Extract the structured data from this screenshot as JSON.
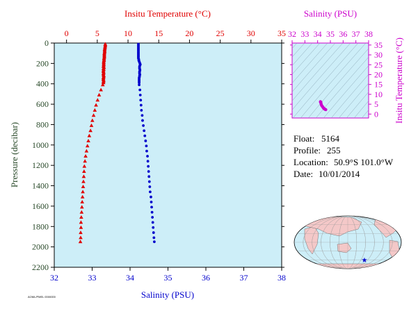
{
  "colors": {
    "temperature": "#e00000",
    "salinity": "#0000cc",
    "ts_magenta": "#cc00cc",
    "pressure_axis": "#2a4a2a",
    "panel_bg": "#cdeef8",
    "land": "#f4c8c8",
    "ocean": "#cdeef8"
  },
  "info": {
    "float_label": "Float:",
    "float_value": "5164",
    "profile_label": "Profile:",
    "profile_value": "255",
    "location_label": "Location:",
    "location_value": "50.9°S  101.0°W",
    "date_label": "Date:",
    "date_value": "10/01/2014"
  },
  "footer_code": "AOML/PMEL 0000000",
  "chart_data": [
    {
      "type": "scatter",
      "name": "profile",
      "top_axis_title": "Insitu Temperature (°C)",
      "bottom_axis_title": "Salinity (PSU)",
      "left_axis_title": "Pressure (decibar)",
      "temperature_ticks": [
        0,
        5,
        10,
        15,
        20,
        25,
        30,
        35
      ],
      "temperature_range": [
        -2,
        35
      ],
      "salinity_ticks": [
        32,
        33,
        34,
        35,
        36,
        37,
        38
      ],
      "salinity_range": [
        32,
        38
      ],
      "pressure_ticks": [
        0,
        200,
        400,
        600,
        800,
        1000,
        1200,
        1400,
        1600,
        1800,
        2000,
        2200
      ],
      "pressure_range": [
        0,
        2200
      ],
      "pressure_reversed": true,
      "series": [
        {
          "name": "Temperature",
          "marker": "triangle",
          "axis": "temperature",
          "pressure": [
            10,
            20,
            30,
            40,
            50,
            60,
            70,
            80,
            90,
            100,
            110,
            120,
            130,
            140,
            150,
            160,
            170,
            180,
            190,
            200,
            210,
            220,
            230,
            240,
            250,
            260,
            270,
            280,
            290,
            300,
            310,
            320,
            330,
            340,
            350,
            360,
            370,
            380,
            390,
            410,
            460,
            510,
            560,
            610,
            660,
            710,
            760,
            810,
            860,
            910,
            960,
            1010,
            1060,
            1110,
            1160,
            1210,
            1260,
            1310,
            1360,
            1410,
            1460,
            1510,
            1560,
            1610,
            1660,
            1710,
            1760,
            1810,
            1860,
            1910,
            1950
          ],
          "values": [
            6.3,
            6.3,
            6.3,
            6.25,
            6.25,
            6.2,
            6.2,
            6.2,
            6.2,
            6.15,
            6.15,
            6.15,
            6.15,
            6.15,
            6.1,
            6.1,
            6.1,
            6.05,
            6.05,
            6.05,
            6.05,
            6.05,
            6.0,
            6.1,
            6.0,
            6.05,
            6.0,
            6.0,
            6.05,
            6.0,
            6.0,
            6.05,
            6.05,
            6.0,
            6.0,
            6.0,
            6.05,
            6.0,
            6.0,
            5.9,
            5.6,
            5.3,
            5.05,
            4.8,
            4.6,
            4.4,
            4.2,
            4.05,
            3.9,
            3.7,
            3.55,
            3.4,
            3.25,
            3.1,
            3.0,
            2.9,
            2.85,
            2.8,
            2.75,
            2.7,
            2.65,
            2.6,
            2.55,
            2.5,
            2.45,
            2.4,
            2.35,
            2.35,
            2.3,
            2.3,
            2.25
          ]
        },
        {
          "name": "Salinity",
          "marker": "circle",
          "axis": "salinity",
          "pressure": [
            10,
            20,
            30,
            40,
            50,
            60,
            70,
            80,
            90,
            100,
            110,
            120,
            130,
            140,
            150,
            160,
            170,
            180,
            190,
            200,
            210,
            220,
            230,
            240,
            250,
            260,
            270,
            280,
            290,
            300,
            310,
            320,
            330,
            340,
            350,
            360,
            370,
            380,
            390,
            410,
            460,
            510,
            560,
            610,
            660,
            710,
            760,
            810,
            860,
            910,
            960,
            1010,
            1060,
            1110,
            1160,
            1210,
            1260,
            1310,
            1360,
            1410,
            1460,
            1510,
            1560,
            1610,
            1660,
            1710,
            1760,
            1810,
            1860,
            1910,
            1950
          ],
          "values": [
            34.22,
            34.22,
            34.22,
            34.22,
            34.22,
            34.22,
            34.22,
            34.22,
            34.22,
            34.22,
            34.22,
            34.22,
            34.22,
            34.22,
            34.22,
            34.23,
            34.23,
            34.24,
            34.25,
            34.26,
            34.27,
            34.26,
            34.25,
            34.25,
            34.25,
            34.26,
            34.26,
            34.25,
            34.25,
            34.25,
            34.26,
            34.25,
            34.25,
            34.24,
            34.24,
            34.24,
            34.24,
            34.24,
            34.24,
            34.24,
            34.26,
            34.27,
            34.28,
            34.29,
            34.3,
            34.32,
            34.33,
            34.35,
            34.37,
            34.39,
            34.41,
            34.43,
            34.44,
            34.46,
            34.47,
            34.48,
            34.49,
            34.5,
            34.51,
            34.52,
            34.53,
            34.55,
            34.56,
            34.57,
            34.58,
            34.59,
            34.6,
            34.61,
            34.62,
            34.63,
            34.64
          ]
        }
      ]
    },
    {
      "type": "scatter",
      "name": "ts_diagram",
      "top_axis_title": "Salinity (PSU)",
      "right_axis_title": "Insitu Temperature (°C)",
      "x_ticks": [
        32,
        33,
        34,
        35,
        36,
        37,
        38
      ],
      "x_range": [
        32,
        38
      ],
      "y_ticks": [
        0,
        5,
        10,
        15,
        20,
        25,
        30,
        35
      ],
      "y_range": [
        -2,
        36
      ],
      "x": [
        34.22,
        34.23,
        34.25,
        34.25,
        34.24,
        34.26,
        34.28,
        34.3,
        34.33,
        34.37,
        34.41,
        34.44,
        34.47,
        34.5,
        34.53,
        34.56,
        34.59,
        34.62,
        34.64
      ],
      "y": [
        6.3,
        6.1,
        6.05,
        6.0,
        6.0,
        5.6,
        5.05,
        4.6,
        4.2,
        3.9,
        3.55,
        3.25,
        3.0,
        2.8,
        2.65,
        2.5,
        2.4,
        2.3,
        2.25
      ]
    }
  ],
  "map": {
    "marker_lat": -50.9,
    "marker_lon": -101.0
  }
}
